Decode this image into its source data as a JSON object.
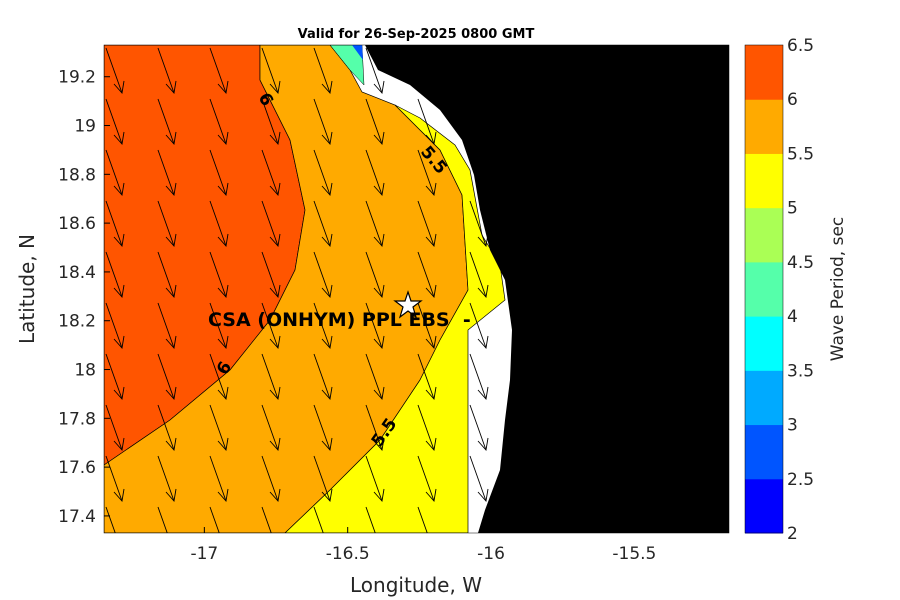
{
  "chart_data": {
    "type": "contour",
    "title": "Valid for 26-Sep-2025 0800 GMT",
    "xlabel": "Longitude, W",
    "ylabel": "Latitude, N",
    "xlim": [
      -17.35,
      -15.17
    ],
    "ylim": [
      17.33,
      19.33
    ],
    "xticks": [
      "-17",
      "-16.5",
      "-16",
      "-15.5"
    ],
    "xtick_values": [
      -17,
      -16.5,
      -16,
      -15.5
    ],
    "yticks": [
      "19.2",
      "19",
      "18.8",
      "18.6",
      "18.4",
      "18.2",
      "18",
      "17.8",
      "17.6",
      "17.4"
    ],
    "ytick_values": [
      19.2,
      19,
      18.8,
      18.6,
      18.4,
      18.2,
      18,
      17.8,
      17.6,
      17.4
    ],
    "colorbar": {
      "label": "Wave Period, sec",
      "ticks": [
        "6.5",
        "6",
        "5.5",
        "5",
        "4.5",
        "4",
        "3.5",
        "3",
        "2.5",
        "2"
      ],
      "levels": [
        2,
        2.5,
        3,
        3.5,
        4,
        4.5,
        5,
        5.5,
        6,
        6.5
      ],
      "colors": [
        "#0000FF",
        "#0055FF",
        "#00AAFF",
        "#00FFFF",
        "#55FFAA",
        "#AAFF55",
        "#FFFF00",
        "#FFAA00",
        "#FF5500"
      ]
    },
    "contour_labels": [
      "6",
      "6",
      "5.5",
      "5.5"
    ],
    "station": {
      "label": "CSA (ONHYM) PPL EBS  -",
      "lon": -16.37,
      "lat": 18.27
    },
    "arrow_direction": "south-southeast",
    "land_color": "#000000"
  }
}
